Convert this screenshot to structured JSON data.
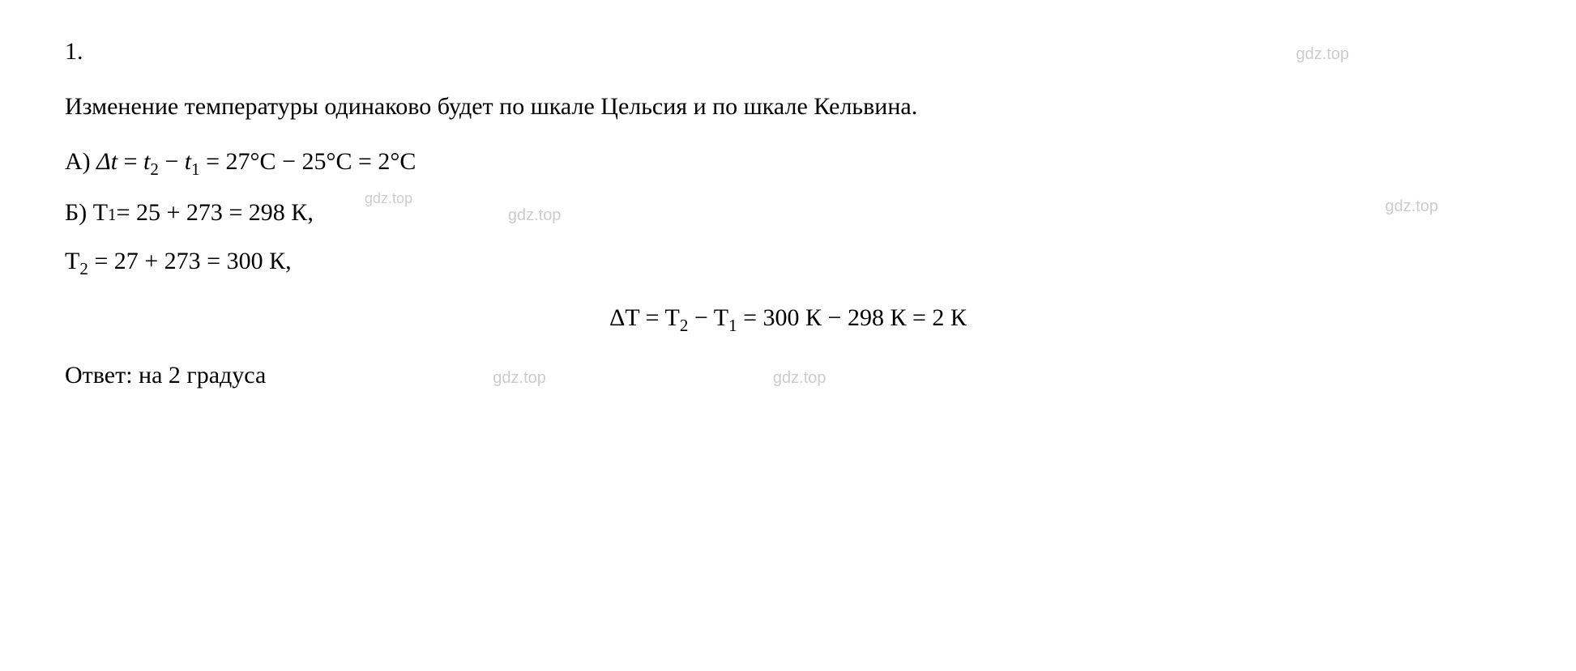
{
  "problem_number": "1.",
  "watermark_text": "gdz.top",
  "intro_paragraph": "Изменение температуры одинаково будет по шкале Цельсия и по шкале Кельвина.",
  "line_a": {
    "label": "А) ",
    "delta_t": "Δ",
    "t_var": "t",
    "eq1": " = ",
    "t2": "t",
    "sub2": "2",
    "minus": " − ",
    "t1": "t",
    "sub1": "1",
    "eq2": " = 27°C − 25°C = 2°C"
  },
  "line_b": {
    "label": "Б) T",
    "sub1": "1",
    "rest": " = 25 + 273 = 298 К,"
  },
  "line_t2": {
    "prefix": "T",
    "sub2": "2",
    "rest": " = 27 + 273 = 300 К,"
  },
  "centered": {
    "prefix": "ΔT = T",
    "sub2": "2",
    "mid": " − T",
    "sub1": "1",
    "rest": " = 300 К − 298 К = 2 К"
  },
  "answer": "Ответ: на 2 градуса",
  "colors": {
    "text": "#000000",
    "watermark": "#cccccc",
    "background": "#ffffff"
  },
  "typography": {
    "body_fontsize": 30,
    "watermark_fontsize": 20,
    "font_family": "Times New Roman"
  }
}
